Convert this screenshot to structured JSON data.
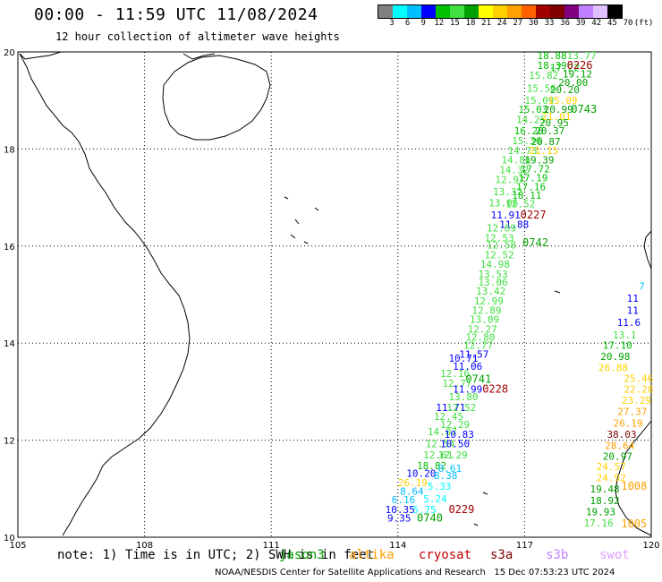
{
  "header": {
    "title": "00:00 - 11:59 UTC 11/08/2024",
    "subtitle": "12 hour collection of altimeter wave heights"
  },
  "colorbar": {
    "colors": [
      "#808080",
      "#00ffff",
      "#00bfff",
      "#0000ff",
      "#00c000",
      "#40e040",
      "#00a000",
      "#ffff00",
      "#ffd000",
      "#ffa000",
      "#ff6000",
      "#a00000",
      "#800000",
      "#800080",
      "#c080ff",
      "#e0c0ff",
      "#000000"
    ],
    "ticks": [
      "3",
      "6",
      "9",
      "12",
      "15",
      "18",
      "21",
      "24",
      "27",
      "30",
      "33",
      "36",
      "39",
      "42",
      "45",
      "70",
      "(ft)"
    ]
  },
  "map": {
    "lon_ticks": [
      "105",
      "108",
      "111",
      "114",
      "117",
      "120"
    ],
    "lat_ticks": [
      "20",
      "18",
      "16",
      "14",
      "12",
      "10"
    ],
    "lon_range": [
      105,
      120
    ],
    "lat_range": [
      10,
      20
    ]
  },
  "track_labels": [
    {
      "t": "18.88",
      "c": "#00c000",
      "lon": 117.3,
      "lat": 19.85
    },
    {
      "t": "13.77",
      "c": "#40e040",
      "lon": 118.0,
      "lat": 19.85
    },
    {
      "t": "18.39",
      "c": "#00c000",
      "lon": 117.3,
      "lat": 19.65
    },
    {
      "t": "17.22",
      "c": "#00c000",
      "lon": 117.6,
      "lat": 19.6
    },
    {
      "t": "0226",
      "c": "#a00000",
      "lon": 118.0,
      "lat": 19.65
    },
    {
      "t": "19.12",
      "c": "#00a000",
      "lon": 117.9,
      "lat": 19.47
    },
    {
      "t": "15.82",
      "c": "#40e040",
      "lon": 117.1,
      "lat": 19.45
    },
    {
      "t": "20.00",
      "c": "#00a000",
      "lon": 117.8,
      "lat": 19.3
    },
    {
      "t": "15.56",
      "c": "#40e040",
      "lon": 117.05,
      "lat": 19.18
    },
    {
      "t": "20.20",
      "c": "#00a000",
      "lon": 117.6,
      "lat": 19.15
    },
    {
      "t": "15.09",
      "c": "#40e040",
      "lon": 117.0,
      "lat": 18.93
    },
    {
      "t": "15.09",
      "c": "#ffd000",
      "lon": 117.55,
      "lat": 18.93
    },
    {
      "t": "15.03",
      "c": "#00c000",
      "lon": 116.85,
      "lat": 18.75
    },
    {
      "t": "20.99",
      "c": "#00a000",
      "lon": 117.45,
      "lat": 18.75
    },
    {
      "t": "0743",
      "c": "#00a000",
      "lon": 118.1,
      "lat": 18.75
    },
    {
      "t": "14.25",
      "c": "#40e040",
      "lon": 116.8,
      "lat": 18.53
    },
    {
      "t": "21.01",
      "c": "#ffd000",
      "lon": 117.4,
      "lat": 18.6
    },
    {
      "t": "20.95",
      "c": "#00a000",
      "lon": 117.35,
      "lat": 18.47
    },
    {
      "t": "16.20",
      "c": "#00c000",
      "lon": 116.75,
      "lat": 18.3
    },
    {
      "t": "20.37",
      "c": "#00a000",
      "lon": 117.25,
      "lat": 18.3
    },
    {
      "t": "15.36",
      "c": "#40e040",
      "lon": 116.7,
      "lat": 18.1
    },
    {
      "t": "20.87",
      "c": "#00a000",
      "lon": 117.15,
      "lat": 18.08
    },
    {
      "t": "14.73",
      "c": "#40e040",
      "lon": 116.6,
      "lat": 17.9
    },
    {
      "t": "21.15",
      "c": "#ffd000",
      "lon": 117.1,
      "lat": 17.9
    },
    {
      "t": "14.86",
      "c": "#40e040",
      "lon": 116.45,
      "lat": 17.7
    },
    {
      "t": "19.39",
      "c": "#00a000",
      "lon": 117.0,
      "lat": 17.7
    },
    {
      "t": "14.32",
      "c": "#40e040",
      "lon": 116.4,
      "lat": 17.5
    },
    {
      "t": "17.72",
      "c": "#00c000",
      "lon": 116.9,
      "lat": 17.52
    },
    {
      "t": "12.97",
      "c": "#40e040",
      "lon": 116.3,
      "lat": 17.3
    },
    {
      "t": "17.19",
      "c": "#00c000",
      "lon": 116.85,
      "lat": 17.33
    },
    {
      "t": "17.16",
      "c": "#00c000",
      "lon": 116.8,
      "lat": 17.15
    },
    {
      "t": "13.32",
      "c": "#40e040",
      "lon": 116.25,
      "lat": 17.05
    },
    {
      "t": "18.11",
      "c": "#00c000",
      "lon": 116.7,
      "lat": 16.97
    },
    {
      "t": "13.06",
      "c": "#40e040",
      "lon": 116.15,
      "lat": 16.82
    },
    {
      "t": "12.52",
      "c": "#40e040",
      "lon": 116.55,
      "lat": 16.8
    },
    {
      "t": "11.91",
      "c": "#0000ff",
      "lon": 116.2,
      "lat": 16.57
    },
    {
      "t": "0227",
      "c": "#a00000",
      "lon": 116.9,
      "lat": 16.57
    },
    {
      "t": "11.88",
      "c": "#0000ff",
      "lon": 116.4,
      "lat": 16.37
    },
    {
      "t": "12.69",
      "c": "#40e040",
      "lon": 116.1,
      "lat": 16.3
    },
    {
      "t": "0742",
      "c": "#00a000",
      "lon": 116.95,
      "lat": 16.0
    },
    {
      "t": "12.53",
      "c": "#40e040",
      "lon": 116.05,
      "lat": 16.1
    },
    {
      "t": "12.58",
      "c": "#40e040",
      "lon": 116.1,
      "lat": 15.95
    },
    {
      "t": "12.52",
      "c": "#40e040",
      "lon": 116.05,
      "lat": 15.75
    },
    {
      "t": "14.98",
      "c": "#40e040",
      "lon": 115.95,
      "lat": 15.55
    },
    {
      "t": "13.53",
      "c": "#40e040",
      "lon": 115.9,
      "lat": 15.35
    },
    {
      "t": "13.06",
      "c": "#40e040",
      "lon": 115.9,
      "lat": 15.18
    },
    {
      "t": "13.42",
      "c": "#40e040",
      "lon": 115.85,
      "lat": 15.0
    },
    {
      "t": "12.99",
      "c": "#40e040",
      "lon": 115.8,
      "lat": 14.8
    },
    {
      "t": "12.89",
      "c": "#40e040",
      "lon": 115.75,
      "lat": 14.6
    },
    {
      "t": "13.09",
      "c": "#40e040",
      "lon": 115.7,
      "lat": 14.42
    },
    {
      "t": "12.27",
      "c": "#40e040",
      "lon": 115.65,
      "lat": 14.22
    },
    {
      "t": "12.80",
      "c": "#40e040",
      "lon": 115.6,
      "lat": 14.05
    },
    {
      "t": "12.77",
      "c": "#40e040",
      "lon": 115.55,
      "lat": 13.88
    },
    {
      "t": "11.57",
      "c": "#0000ff",
      "lon": 115.45,
      "lat": 13.7
    },
    {
      "t": "10.71",
      "c": "#0000ff",
      "lon": 115.2,
      "lat": 13.62
    },
    {
      "t": "11.06",
      "c": "#0000ff",
      "lon": 115.3,
      "lat": 13.45
    },
    {
      "t": "12.16",
      "c": "#40e040",
      "lon": 115.0,
      "lat": 13.3
    },
    {
      "t": "0741",
      "c": "#00a000",
      "lon": 115.6,
      "lat": 13.18
    },
    {
      "t": "12.77",
      "c": "#40e040",
      "lon": 115.05,
      "lat": 13.1
    },
    {
      "t": "11.99",
      "c": "#0000ff",
      "lon": 115.3,
      "lat": 12.98
    },
    {
      "t": "0228",
      "c": "#a00000",
      "lon": 116.0,
      "lat": 12.98
    },
    {
      "t": "13.80",
      "c": "#40e040",
      "lon": 115.2,
      "lat": 12.82
    },
    {
      "t": "11.71",
      "c": "#0000ff",
      "lon": 114.9,
      "lat": 12.6
    },
    {
      "t": "12.52",
      "c": "#40e040",
      "lon": 115.15,
      "lat": 12.6
    },
    {
      "t": "12.45",
      "c": "#40e040",
      "lon": 114.85,
      "lat": 12.42
    },
    {
      "t": "12.29",
      "c": "#40e040",
      "lon": 115.0,
      "lat": 12.25
    },
    {
      "t": "14.07",
      "c": "#40e040",
      "lon": 114.7,
      "lat": 12.1
    },
    {
      "t": "10.83",
      "c": "#0000ff",
      "lon": 115.1,
      "lat": 12.05
    },
    {
      "t": "12.54",
      "c": "#40e040",
      "lon": 114.65,
      "lat": 11.85
    },
    {
      "t": "10.50",
      "c": "#0000ff",
      "lon": 115.0,
      "lat": 11.85
    },
    {
      "t": "12.61",
      "c": "#40e040",
      "lon": 114.6,
      "lat": 11.62
    },
    {
      "t": "12.29",
      "c": "#40e040",
      "lon": 114.95,
      "lat": 11.62
    },
    {
      "t": "18.82",
      "c": "#00c000",
      "lon": 114.45,
      "lat": 11.4
    },
    {
      "t": "8.61",
      "c": "#00bfff",
      "lon": 114.95,
      "lat": 11.35
    },
    {
      "t": "10.20",
      "c": "#0000ff",
      "lon": 114.2,
      "lat": 11.25
    },
    {
      "t": "8.38",
      "c": "#00bfff",
      "lon": 114.85,
      "lat": 11.2
    },
    {
      "t": "26.19",
      "c": "#ffd000",
      "lon": 114.0,
      "lat": 11.05
    },
    {
      "t": "5.33",
      "c": "#00ffff",
      "lon": 114.7,
      "lat": 10.98
    },
    {
      "t": "8.64",
      "c": "#00bfff",
      "lon": 114.05,
      "lat": 10.88
    },
    {
      "t": "6.16",
      "c": "#00bfff",
      "lon": 113.85,
      "lat": 10.7
    },
    {
      "t": "5.24",
      "c": "#00ffff",
      "lon": 114.6,
      "lat": 10.72
    },
    {
      "t": "10.35",
      "c": "#0000ff",
      "lon": 113.7,
      "lat": 10.5
    },
    {
      "t": "5.75",
      "c": "#00ffff",
      "lon": 114.35,
      "lat": 10.5
    },
    {
      "t": "0229",
      "c": "#a00000",
      "lon": 115.2,
      "lat": 10.5
    },
    {
      "t": "9.35",
      "c": "#0000ff",
      "lon": 113.75,
      "lat": 10.32
    },
    {
      "t": "0740",
      "c": "#00a000",
      "lon": 114.45,
      "lat": 10.32
    },
    {
      "t": "7",
      "c": "#00bfff",
      "lon": 119.85,
      "lat": 15.1
    },
    {
      "t": "11",
      "c": "#0000ff",
      "lon": 119.7,
      "lat": 14.85
    },
    {
      "t": "11",
      "c": "#0000ff",
      "lon": 119.7,
      "lat": 14.6
    },
    {
      "t": "11.6",
      "c": "#0000ff",
      "lon": 119.75,
      "lat": 14.35
    },
    {
      "t": "13.1",
      "c": "#40e040",
      "lon": 119.65,
      "lat": 14.1
    },
    {
      "t": "17.10",
      "c": "#00c000",
      "lon": 119.55,
      "lat": 13.88
    },
    {
      "t": "20.98",
      "c": "#00a000",
      "lon": 119.5,
      "lat": 13.65
    },
    {
      "t": "26.88",
      "c": "#ffd000",
      "lon": 119.45,
      "lat": 13.42
    },
    {
      "t": "25.46",
      "c": "#ffd000",
      "lon": 119.35,
      "lat": 13.2
    },
    {
      "t": "22.28",
      "c": "#ffd000",
      "lon": 119.35,
      "lat": 12.98
    },
    {
      "t": "23.29",
      "c": "#ffd000",
      "lon": 119.3,
      "lat": 12.75
    },
    {
      "t": "27.37",
      "c": "#ffa000",
      "lon": 119.2,
      "lat": 12.52
    },
    {
      "t": "26.19",
      "c": "#ffa000",
      "lon": 119.1,
      "lat": 12.28
    },
    {
      "t": "38.03",
      "c": "#800000",
      "lon": 118.95,
      "lat": 12.05
    },
    {
      "t": "28.64",
      "c": "#ffa000",
      "lon": 118.9,
      "lat": 11.82
    },
    {
      "t": "20.97",
      "c": "#00a000",
      "lon": 118.85,
      "lat": 11.6
    },
    {
      "t": "24.57",
      "c": "#ffd000",
      "lon": 118.7,
      "lat": 11.38
    },
    {
      "t": "24.92",
      "c": "#ffd000",
      "lon": 118.7,
      "lat": 11.15
    },
    {
      "t": "1008",
      "c": "#ffa000",
      "lon": 119.9,
      "lat": 10.98
    },
    {
      "t": "19.48",
      "c": "#00a000",
      "lon": 118.55,
      "lat": 10.92
    },
    {
      "t": "18.92",
      "c": "#00a000",
      "lon": 118.55,
      "lat": 10.68
    },
    {
      "t": "19.93",
      "c": "#00a000",
      "lon": 118.45,
      "lat": 10.45
    },
    {
      "t": "17.16",
      "c": "#40e040",
      "lon": 118.4,
      "lat": 10.22
    },
    {
      "t": "1005",
      "c": "#ffa000",
      "lon": 119.9,
      "lat": 10.2
    }
  ],
  "footer": {
    "note": "note: 1) Time is in UTC; 2) SWH is in feet",
    "legend": [
      {
        "label": "jason3",
        "color": "#00a000"
      },
      {
        "label": "altika",
        "color": "#ffa000"
      },
      {
        "label": "cryosat",
        "color": "#c00000"
      },
      {
        "label": "s3a",
        "color": "#800000"
      },
      {
        "label": "s3b",
        "color": "#c080ff"
      },
      {
        "label": "swot",
        "color": "#e0a0ff"
      }
    ],
    "credit": "NOAA/NESDIS Center for Satellite Applications and Research   15 Dec 07:53:23 UTC 2024"
  }
}
